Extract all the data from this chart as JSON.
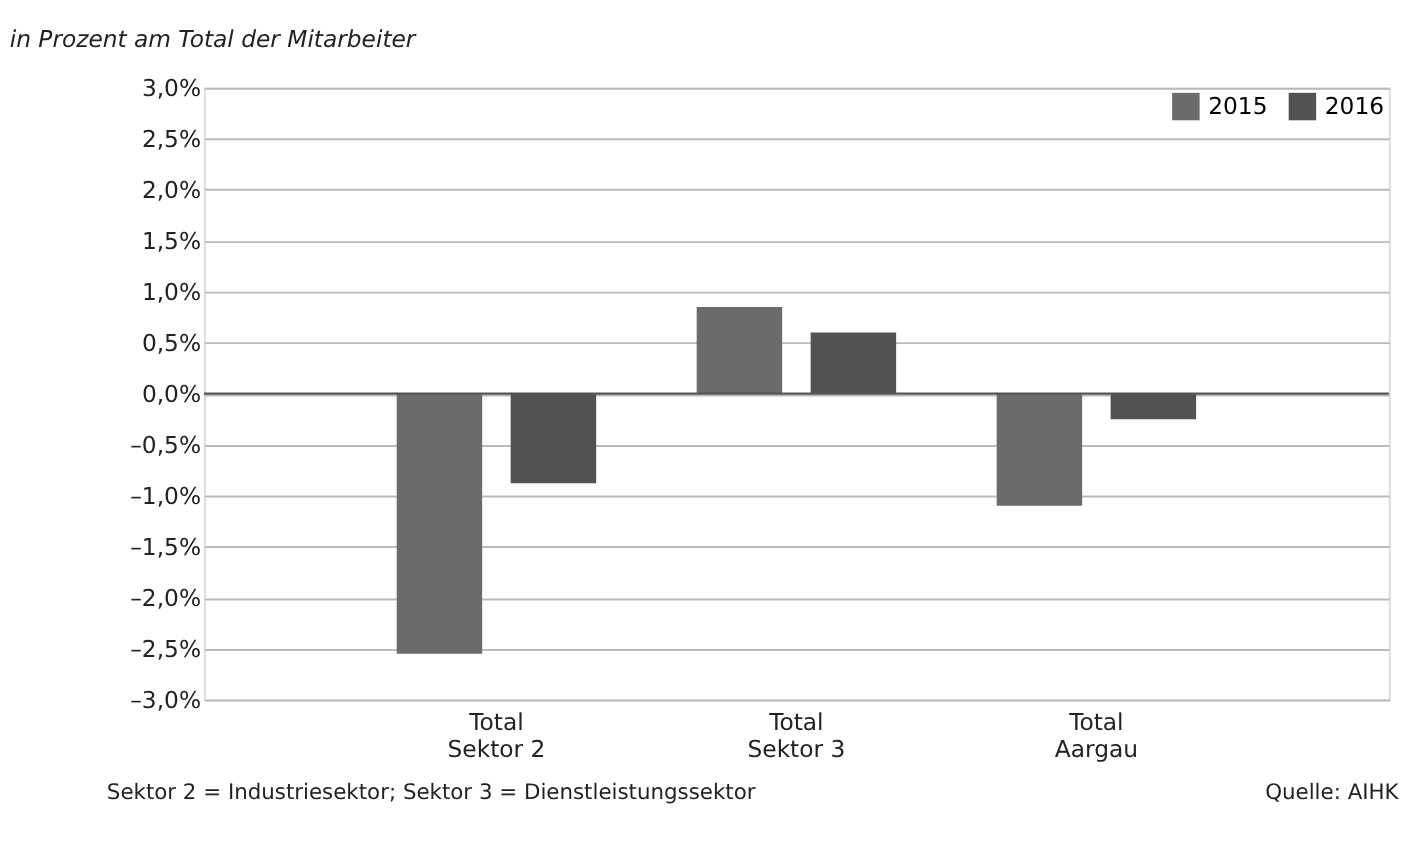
{
  "chart_data": {
    "type": "bar",
    "title": "in Prozent am Total der Mitarbeiter",
    "categories": [
      "Total Sektor 2",
      "Total Sektor 3",
      "Total Aargau"
    ],
    "series": [
      {
        "name": "2015",
        "color": "#6b6b6b",
        "values": [
          -2.55,
          0.85,
          -1.1
        ]
      },
      {
        "name": "2016",
        "color": "#525252",
        "values": [
          -0.88,
          0.6,
          -0.25
        ]
      }
    ],
    "ylim": [
      -3.0,
      3.0
    ],
    "yticks": [
      {
        "value": -3.0,
        "label": "–3,0%"
      },
      {
        "value": -2.5,
        "label": "–2,5%"
      },
      {
        "value": -2.0,
        "label": "–2,0%"
      },
      {
        "value": -1.5,
        "label": "–1,5%"
      },
      {
        "value": -1.0,
        "label": "–1,0%"
      },
      {
        "value": -0.5,
        "label": "–0,5%"
      },
      {
        "value": 0.0,
        "label": "0,0%"
      },
      {
        "value": 0.5,
        "label": "0,5%"
      },
      {
        "value": 1.0,
        "label": "1,0%"
      },
      {
        "value": 1.5,
        "label": "1,5%"
      },
      {
        "value": 2.0,
        "label": "2,0%"
      },
      {
        "value": 2.5,
        "label": "2,5%"
      },
      {
        "value": 3.0,
        "label": "3,0%"
      }
    ],
    "ref_lines": [
      {
        "axis": "y",
        "value": 0,
        "color": "#555555"
      }
    ],
    "grid": "y",
    "legend": "top right",
    "annotations": [
      "Sektor 2 = Industriesektor; Sektor 3 = Dienstleistungssektor",
      "Quelle: AIHK"
    ]
  }
}
